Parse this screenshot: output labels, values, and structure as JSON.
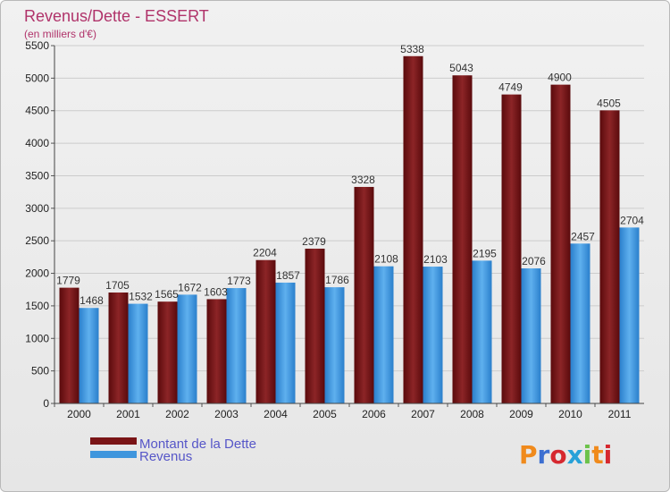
{
  "header": {
    "title": "Revenus/Dette - ESSERT",
    "subtitle": "(en milliers d'€)"
  },
  "legend": {
    "debt_label": "Montant de la Dette",
    "revenue_label": "Revenus"
  },
  "logo": {
    "text": "Proxiti",
    "letter_colors": [
      "#f08a1c",
      "#3c6fd1",
      "#d6282f",
      "#27a1d8",
      "#6cc24a",
      "#f08a1c",
      "#d6282f"
    ]
  },
  "colors": {
    "debt": "#7a1416",
    "revenue": "#3f96dd",
    "title": "#b0336a"
  },
  "chart_data": {
    "type": "bar",
    "title": "Revenus/Dette - ESSERT",
    "subtitle": "(en milliers d'€)",
    "categories": [
      "2000",
      "2001",
      "2002",
      "2003",
      "2004",
      "2005",
      "2006",
      "2007",
      "2008",
      "2009",
      "2010",
      "2011"
    ],
    "series": [
      {
        "name": "Montant de la Dette",
        "values": [
          1779,
          1705,
          1565,
          1603,
          2204,
          2379,
          3328,
          5338,
          5043,
          4749,
          4900,
          4505
        ]
      },
      {
        "name": "Revenus",
        "values": [
          1468,
          1532,
          1672,
          1773,
          1857,
          1786,
          2108,
          2103,
          2195,
          2076,
          2457,
          2704
        ]
      }
    ],
    "data_labels": [
      [
        "1779",
        "1705",
        "1565",
        "1603",
        "2204",
        "2379",
        "3328",
        "5338",
        "5043",
        "4749",
        "4900",
        "4505"
      ],
      [
        "1468",
        "1532",
        "1672",
        "1773",
        "1857",
        "1786",
        "2108",
        "2103",
        "2195",
        "2076",
        "2457",
        "2704"
      ]
    ],
    "ylim": [
      0,
      5500
    ],
    "yticks": [
      0,
      500,
      1000,
      1500,
      2000,
      2500,
      3000,
      3500,
      4000,
      4500,
      5000,
      5500
    ],
    "grid": true,
    "legend_position": "bottom-left"
  }
}
